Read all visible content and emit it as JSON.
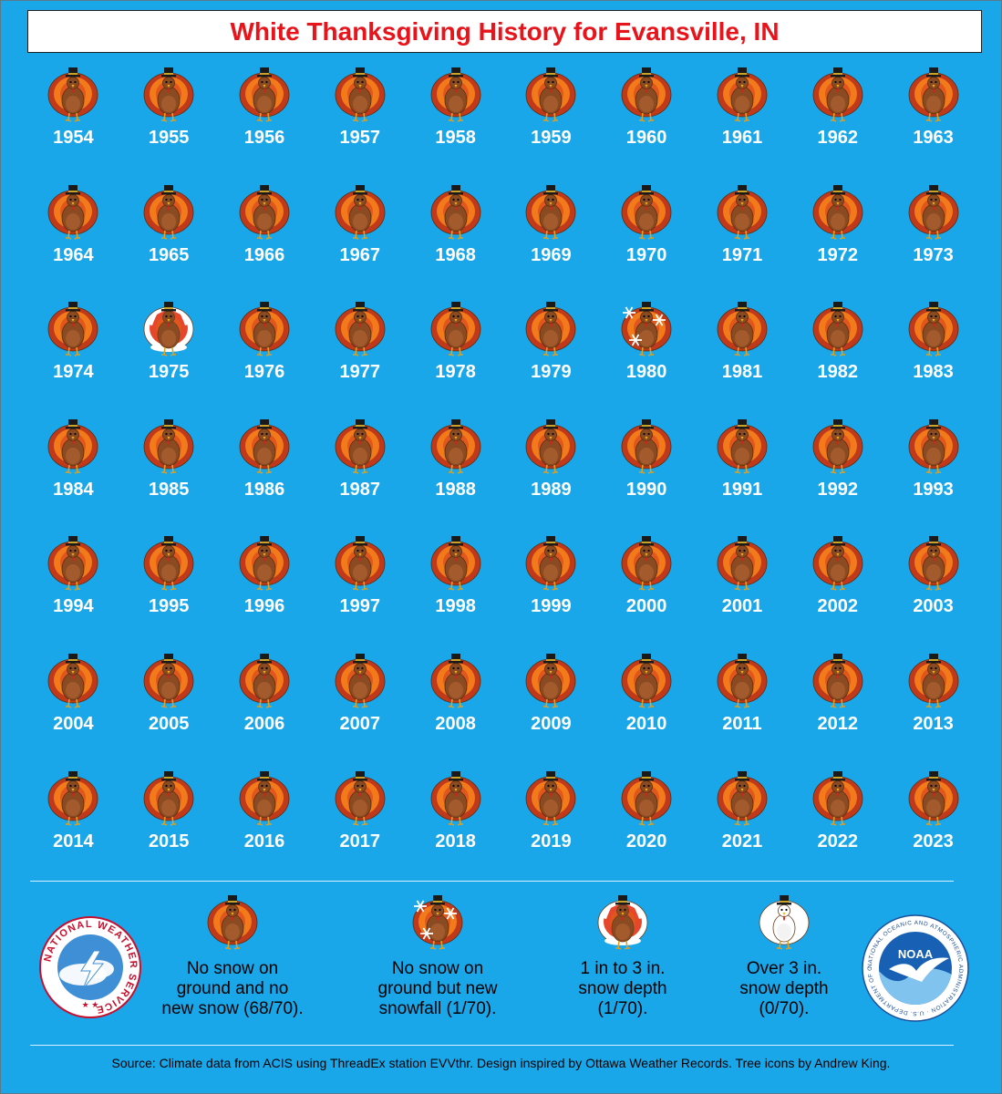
{
  "title": "White Thanksgiving History for Evansville, IN",
  "colors": {
    "background": "#1aa7ea",
    "title": "#e8141c",
    "year_text": "#ffffff"
  },
  "years": [
    {
      "year": "1954",
      "category": "none"
    },
    {
      "year": "1955",
      "category": "none"
    },
    {
      "year": "1956",
      "category": "none"
    },
    {
      "year": "1957",
      "category": "none"
    },
    {
      "year": "1958",
      "category": "none"
    },
    {
      "year": "1959",
      "category": "none"
    },
    {
      "year": "1960",
      "category": "none"
    },
    {
      "year": "1961",
      "category": "none"
    },
    {
      "year": "1962",
      "category": "none"
    },
    {
      "year": "1963",
      "category": "none"
    },
    {
      "year": "1964",
      "category": "none"
    },
    {
      "year": "1965",
      "category": "none"
    },
    {
      "year": "1966",
      "category": "none"
    },
    {
      "year": "1967",
      "category": "none"
    },
    {
      "year": "1968",
      "category": "none"
    },
    {
      "year": "1969",
      "category": "none"
    },
    {
      "year": "1970",
      "category": "none"
    },
    {
      "year": "1971",
      "category": "none"
    },
    {
      "year": "1972",
      "category": "none"
    },
    {
      "year": "1973",
      "category": "none"
    },
    {
      "year": "1974",
      "category": "none"
    },
    {
      "year": "1975",
      "category": "depth_1_3"
    },
    {
      "year": "1976",
      "category": "none"
    },
    {
      "year": "1977",
      "category": "none"
    },
    {
      "year": "1978",
      "category": "none"
    },
    {
      "year": "1979",
      "category": "none"
    },
    {
      "year": "1980",
      "category": "new_snowfall"
    },
    {
      "year": "1981",
      "category": "none"
    },
    {
      "year": "1982",
      "category": "none"
    },
    {
      "year": "1983",
      "category": "none"
    },
    {
      "year": "1984",
      "category": "none"
    },
    {
      "year": "1985",
      "category": "none"
    },
    {
      "year": "1986",
      "category": "none"
    },
    {
      "year": "1987",
      "category": "none"
    },
    {
      "year": "1988",
      "category": "none"
    },
    {
      "year": "1989",
      "category": "none"
    },
    {
      "year": "1990",
      "category": "none"
    },
    {
      "year": "1991",
      "category": "none"
    },
    {
      "year": "1992",
      "category": "none"
    },
    {
      "year": "1993",
      "category": "none"
    },
    {
      "year": "1994",
      "category": "none"
    },
    {
      "year": "1995",
      "category": "none"
    },
    {
      "year": "1996",
      "category": "none"
    },
    {
      "year": "1997",
      "category": "none"
    },
    {
      "year": "1998",
      "category": "none"
    },
    {
      "year": "1999",
      "category": "none"
    },
    {
      "year": "2000",
      "category": "none"
    },
    {
      "year": "2001",
      "category": "none"
    },
    {
      "year": "2002",
      "category": "none"
    },
    {
      "year": "2003",
      "category": "none"
    },
    {
      "year": "2004",
      "category": "none"
    },
    {
      "year": "2005",
      "category": "none"
    },
    {
      "year": "2006",
      "category": "none"
    },
    {
      "year": "2007",
      "category": "none"
    },
    {
      "year": "2008",
      "category": "none"
    },
    {
      "year": "2009",
      "category": "none"
    },
    {
      "year": "2010",
      "category": "none"
    },
    {
      "year": "2011",
      "category": "none"
    },
    {
      "year": "2012",
      "category": "none"
    },
    {
      "year": "2013",
      "category": "none"
    },
    {
      "year": "2014",
      "category": "none"
    },
    {
      "year": "2015",
      "category": "none"
    },
    {
      "year": "2016",
      "category": "none"
    },
    {
      "year": "2017",
      "category": "none"
    },
    {
      "year": "2018",
      "category": "none"
    },
    {
      "year": "2019",
      "category": "none"
    },
    {
      "year": "2020",
      "category": "none"
    },
    {
      "year": "2021",
      "category": "none"
    },
    {
      "year": "2022",
      "category": "none"
    },
    {
      "year": "2023",
      "category": "none"
    }
  ],
  "legend": {
    "none": "No snow on\nground and no\nnew snow (68/70).",
    "new_snowfall": "No snow on\nground but new\nsnowfall (1/70).",
    "depth_1_3": "1 in to 3 in.\nsnow depth\n(1/70).",
    "depth_over_3": "Over 3 in.\nsnow depth\n(0/70)."
  },
  "logos": {
    "nws": "NATIONAL WEATHER SERVICE",
    "noaa": "NOAA",
    "noaa_ring": "NATIONAL OCEANIC AND ATMOSPHERIC ADMINISTRATION · U.S. DEPARTMENT OF COMMERCE"
  },
  "source": "Source: Climate data from ACIS using ThreadEx station EVVthr. Design inspired by Ottawa Weather Records. Tree icons by Andrew King."
}
